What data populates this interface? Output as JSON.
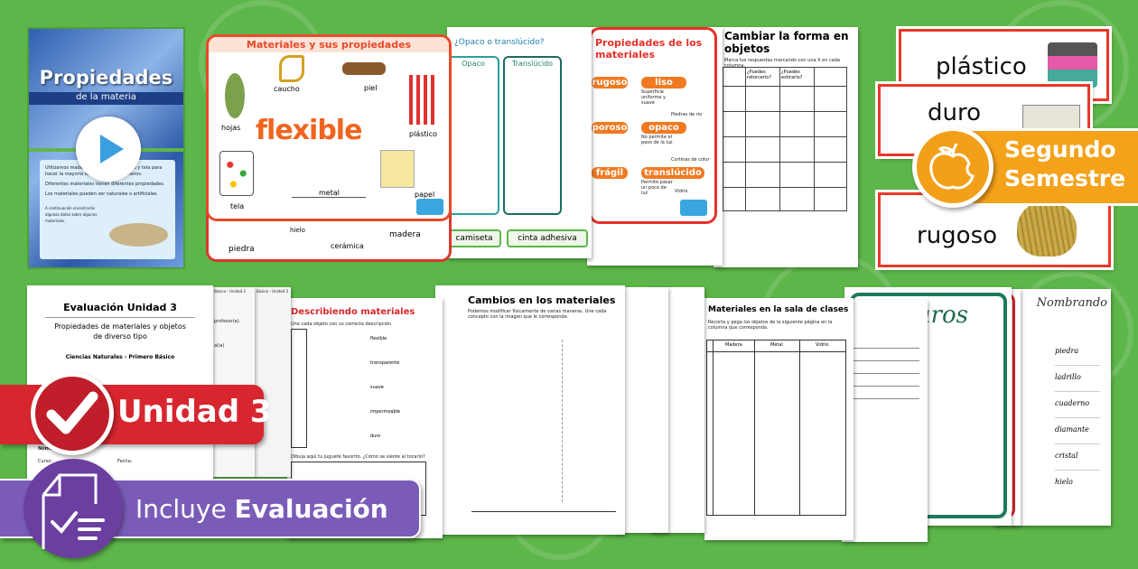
{
  "colors": {
    "background": "#5db64a",
    "red_banner": "#d7262f",
    "purple_banner": "#7a5cb8",
    "orange_banner": "#f5a21b",
    "poster_border": "#e8492a"
  },
  "slide": {
    "title": "Propiedades",
    "subtitle": "de la materia",
    "bullets": [
      "Utilizamos madera, metal, piedra, vidrio y tela para hacer la mayoría de los objetos cotidianos.",
      "Diferentes materiales tienen diferentes propiedades.",
      "Los materiales pueden ser naturales o artificiales."
    ],
    "note": "A continuación encontrarás algunas datos sobre algunos materiales.",
    "icon": "play-icon"
  },
  "poster_flexible": {
    "title": "Materiales y sus propiedades",
    "word": "flexible",
    "items": [
      "hojas",
      "caucho",
      "piel",
      "plástico",
      "tela",
      "metal",
      "papel"
    ],
    "behind_items": [
      "piedra",
      "hielo",
      "cerámica",
      "madera"
    ]
  },
  "opaco_sheet": {
    "title": "¿Opaco o translúcido?",
    "columns": [
      "Opaco",
      "Translúcido"
    ],
    "labels": [
      "camiseta",
      "cinta adhesiva"
    ]
  },
  "propiedades_poster": {
    "title": "Propiedades de los materiales",
    "tags": [
      "rugoso",
      "liso",
      "poroso",
      "opaco",
      "frágil",
      "translúcido"
    ],
    "liso_text": "Superficie uniforme y suave",
    "opaco_text": "No permite el paso de la luz",
    "translucido_text": "Permite pasar un poco de luz",
    "captions": [
      "Piedras de río",
      "Cortinas de color",
      "Vidrio"
    ]
  },
  "forma_sheet": {
    "title": "Cambiar la forma en objetos",
    "instruction": "Marca tus respuestas marcando con una X en cada columna.",
    "columns": [
      "¿Puedes retorcerlo?",
      "¿Puedes estirarlo?"
    ]
  },
  "word_cards": [
    "plástico",
    "duro",
    "rugoso"
  ],
  "semestre_badge": {
    "line1": "Segundo",
    "line2": "Semestre",
    "icon": "apple-icon"
  },
  "evaluacion_sheet": {
    "title": "Evaluación Unidad 3",
    "subtitle": "Propiedades de materiales y objetos de diverso tipo",
    "course": "Ciencias Naturales - Primero Básico",
    "name_label": "Nombre:",
    "curso_label": "Curso:",
    "fecha_label": "Fecha:",
    "side_header": "Básico - Unidad 3",
    "side_labels": [
      "profesor(a).",
      "al(a)"
    ]
  },
  "describiendo_sheet": {
    "title": "Describiendo materiales",
    "instruction": "Une cada objeto con su correcta descripción.",
    "words": [
      "flexible",
      "transparente",
      "suave",
      "impermeable",
      "duro"
    ],
    "question": "Dibuja aquí tu juguete favorito. ¿Cómo se siente al tocarlo?"
  },
  "cambios_sheet": {
    "title": "Cambios en los materiales",
    "instruction": "Podemos modificar físicamente de varias maneras. Une cada concepto con la imagen que le corresponde."
  },
  "sala_sheet": {
    "title": "Materiales en la sala de clases",
    "instruction": "Recorta y pega los objetos de la siguiente página en la columna que corresponda.",
    "columns": [
      "Madera",
      "Metal",
      "Vidrio"
    ]
  },
  "duros_card": {
    "title": "Duros"
  },
  "list_sheet": {
    "title": "Nombrando",
    "items": [
      "piedra",
      "ladrillo",
      "cuaderno",
      "diamante",
      "cristal",
      "hielo"
    ]
  },
  "unidad_banner": {
    "label": "Unidad 3",
    "icon": "checkmark-icon"
  },
  "evaluacion_banner": {
    "prefix": "Incluye",
    "bold": "Evaluación",
    "icon": "document-checklist-icon"
  }
}
